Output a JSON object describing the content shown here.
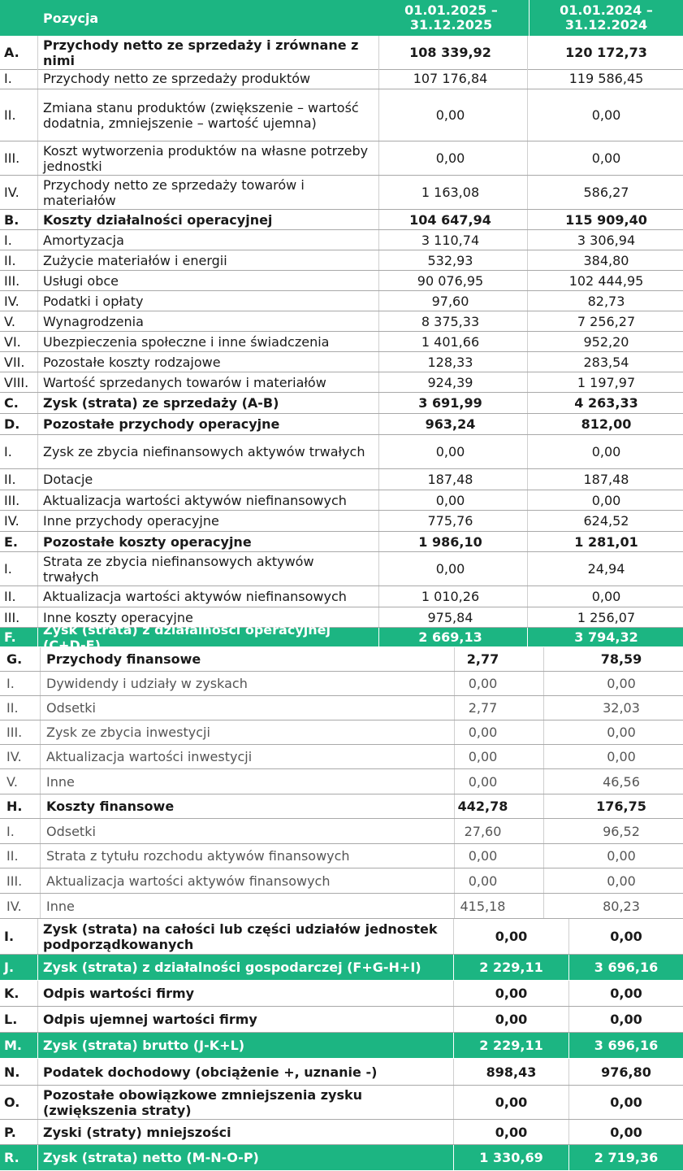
{
  "header": {
    "position_label": "Pozycja",
    "period1": "01.01.2025 – 31.12.2025",
    "period2": "01.01.2024 – 31.12.2024"
  },
  "rows": [
    {
      "n": "A.",
      "label": "Przychody netto ze sprzedaży i zrównane z nimi",
      "v1": "108 339,92",
      "v2": "120 172,73"
    },
    {
      "n": "I.",
      "label": "Przychody netto ze sprzedaży produktów",
      "v1": "107 176,84",
      "v2": "119 586,45"
    },
    {
      "n": "II.",
      "label": "Zmiana stanu produktów (zwiększenie – wartość dodatnia, zmniejszenie – wartość ujemna)",
      "v1": "0,00",
      "v2": "0,00"
    },
    {
      "n": "III.",
      "label": "Koszt wytworzenia produktów na własne potrzeby jednostki",
      "v1": "0,00",
      "v2": "0,00"
    },
    {
      "n": "IV.",
      "label": "Przychody netto ze sprzedaży towarów i materiałów",
      "v1": "1 163,08",
      "v2": "586,27"
    },
    {
      "n": "B.",
      "label": "Koszty działalności operacyjnej",
      "v1": "104 647,94",
      "v2": "115 909,40"
    },
    {
      "n": "I.",
      "label": "Amortyzacja",
      "v1": "3 110,74",
      "v2": "3 306,94"
    },
    {
      "n": "II.",
      "label": "Zużycie materiałów i energii",
      "v1": "532,93",
      "v2": "384,80"
    },
    {
      "n": "III.",
      "label": "Usługi obce",
      "v1": "90 076,95",
      "v2": "102 444,95"
    },
    {
      "n": "IV.",
      "label": "Podatki i opłaty",
      "v1": "97,60",
      "v2": "82,73"
    },
    {
      "n": "V.",
      "label": "Wynagrodzenia",
      "v1": "8 375,33",
      "v2": "7 256,27"
    },
    {
      "n": "VI.",
      "label": "Ubezpieczenia społeczne i inne świadczenia",
      "v1": "1 401,66",
      "v2": "952,20"
    },
    {
      "n": "VII.",
      "label": "Pozostałe koszty rodzajowe",
      "v1": "128,33",
      "v2": "283,54"
    },
    {
      "n": "VIII.",
      "label": "Wartość sprzedanych towarów i materiałów",
      "v1": "924,39",
      "v2": "1 197,97"
    },
    {
      "n": "C.",
      "label": "Zysk (strata) ze sprzedaży (A-B)",
      "v1": "3 691,99",
      "v2": "4 263,33"
    },
    {
      "n": "D.",
      "label": "Pozostałe przychody operacyjne",
      "v1": "963,24",
      "v2": "812,00"
    },
    {
      "n": "I.",
      "label": "Zysk ze zbycia niefinansowych aktywów trwałych",
      "v1": "0,00",
      "v2": "0,00"
    },
    {
      "n": "II.",
      "label": "Dotacje",
      "v1": "187,48",
      "v2": "187,48"
    },
    {
      "n": "III.",
      "label": "Aktualizacja wartości aktywów niefinansowych",
      "v1": "0,00",
      "v2": "0,00"
    },
    {
      "n": "IV.",
      "label": "Inne przychody operacyjne",
      "v1": "775,76",
      "v2": "624,52"
    },
    {
      "n": "E.",
      "label": "Pozostałe koszty operacyjne",
      "v1": "1 986,10",
      "v2": "1 281,01"
    },
    {
      "n": "I.",
      "label": "Strata ze zbycia niefinansowych aktywów trwałych",
      "v1": "0,00",
      "v2": "24,94"
    },
    {
      "n": "II.",
      "label": "Aktualizacja wartości aktywów niefinansowych",
      "v1": "1 010,26",
      "v2": "0,00"
    },
    {
      "n": "III.",
      "label": "Inne koszty operacyjne",
      "v1": "975,84",
      "v2": "1 256,07"
    },
    {
      "n": "F.",
      "label": "Zysk (strata) z działalności operacyjnej (C+D-E)",
      "v1": "2 669,13",
      "v2": "3 794,32"
    },
    {
      "n": "G.",
      "label": "Przychody finansowe",
      "v1": "2,77",
      "v2": "78,59"
    },
    {
      "n": "I.",
      "label": "Dywidendy i udziały w zyskach",
      "v1": "0,00",
      "v2": "0,00"
    },
    {
      "n": "II.",
      "label": "Odsetki",
      "v1": "2,77",
      "v2": "32,03"
    },
    {
      "n": "III.",
      "label": "Zysk ze zbycia inwestycji",
      "v1": "0,00",
      "v2": "0,00"
    },
    {
      "n": "IV.",
      "label": "Aktualizacja wartości inwestycji",
      "v1": "0,00",
      "v2": "0,00"
    },
    {
      "n": "V.",
      "label": "Inne",
      "v1": "0,00",
      "v2": "46,56"
    },
    {
      "n": "H.",
      "label": "Koszty finansowe",
      "v1": "442,78",
      "v2": "176,75"
    },
    {
      "n": "I.",
      "label": "Odsetki",
      "v1": "27,60",
      "v2": "96,52"
    },
    {
      "n": "II.",
      "label": "Strata z tytułu rozchodu aktywów finansowych",
      "v1": "0,00",
      "v2": "0,00"
    },
    {
      "n": "III.",
      "label": "Aktualizacja wartości aktywów finansowych",
      "v1": "0,00",
      "v2": "0,00"
    },
    {
      "n": "IV.",
      "label": "Inne",
      "v1": "415,18",
      "v2": "80,23"
    },
    {
      "n": "I.",
      "label": "Zysk (strata) na całości lub części udziałów jednostek podporządkowanych",
      "v1": "0,00",
      "v2": "0,00"
    },
    {
      "n": "J.",
      "label": "Zysk (strata) z działalności gospodarczej (F+G-H+I)",
      "v1": "2 229,11",
      "v2": "3 696,16"
    },
    {
      "n": "K.",
      "label": "Odpis wartości firmy",
      "v1": "0,00",
      "v2": "0,00"
    },
    {
      "n": "L.",
      "label": "Odpis ujemnej wartości firmy",
      "v1": "0,00",
      "v2": "0,00"
    },
    {
      "n": "M.",
      "label": "Zysk (strata) brutto (J-K+L)",
      "v1": "2 229,11",
      "v2": "3 696,16"
    },
    {
      "n": "N.",
      "label": "Podatek dochodowy  (obciążenie +, uznanie -)",
      "v1": "898,43",
      "v2": "976,80"
    },
    {
      "n": "O.",
      "label": "Pozostałe obowiązkowe zmniejszenia zysku (zwiększenia straty)",
      "v1": "0,00",
      "v2": "0,00"
    },
    {
      "n": "P.",
      "label": "Zyski (straty) mniejszości",
      "v1": "0,00",
      "v2": "0,00"
    },
    {
      "n": "R.",
      "label": "Zysk (strata) netto  (M-N-O-P)",
      "v1": "1 330,69",
      "v2": "2 719,36"
    }
  ],
  "colors": {
    "accent": "#1cb582",
    "grid": "#a9a9a9"
  }
}
